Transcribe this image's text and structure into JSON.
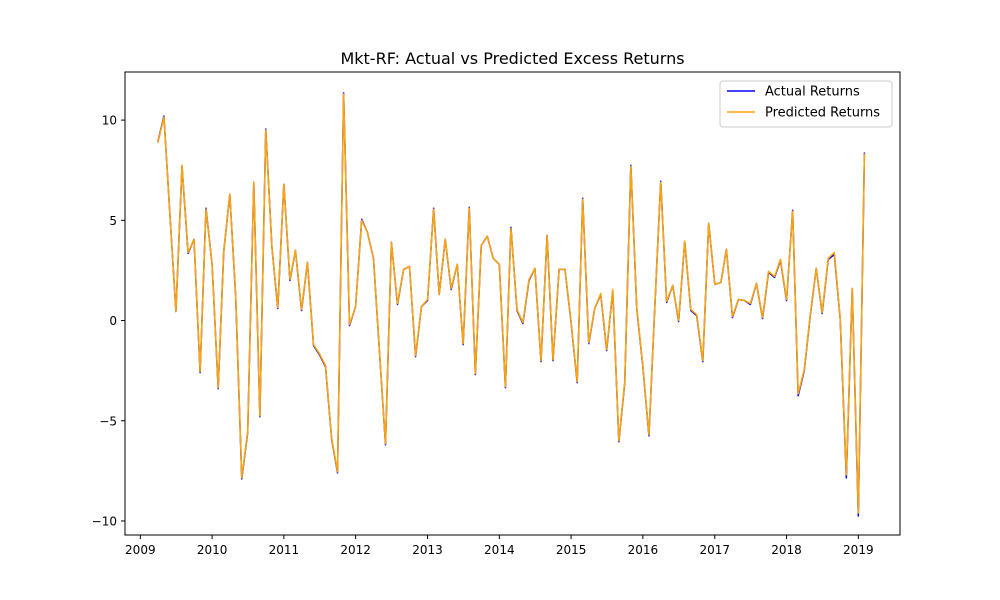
{
  "chart_data": {
    "type": "line",
    "title": "Mkt-RF: Actual vs Predicted Excess Returns",
    "xlabel": "",
    "ylabel": "",
    "x_axis": {
      "type": "date",
      "min": "2008-10-15",
      "max": "2019-08-01",
      "ticks": [
        {
          "label": "2009",
          "value": "2009-01-01"
        },
        {
          "label": "2010",
          "value": "2010-01-01"
        },
        {
          "label": "2011",
          "value": "2011-01-01"
        },
        {
          "label": "2012",
          "value": "2012-01-01"
        },
        {
          "label": "2013",
          "value": "2013-01-01"
        },
        {
          "label": "2014",
          "value": "2014-01-01"
        },
        {
          "label": "2015",
          "value": "2015-01-01"
        },
        {
          "label": "2016",
          "value": "2016-01-01"
        },
        {
          "label": "2017",
          "value": "2017-01-01"
        },
        {
          "label": "2018",
          "value": "2018-01-01"
        },
        {
          "label": "2019",
          "value": "2019-01-01"
        }
      ]
    },
    "y_axis": {
      "min": -10.7,
      "max": 12.4,
      "ticks": [
        {
          "label": "−10",
          "value": -10
        },
        {
          "label": "−5",
          "value": -5
        },
        {
          "label": "0",
          "value": 0
        },
        {
          "label": "5",
          "value": 5
        },
        {
          "label": "10",
          "value": 10
        }
      ]
    },
    "grid": false,
    "legend": {
      "position": "top-right",
      "entries": [
        {
          "label": "Actual Returns",
          "color": "#0000ff"
        },
        {
          "label": "Predicted Returns",
          "color": "#ffa500"
        }
      ]
    },
    "x": [
      "2009-04-01",
      "2009-05-01",
      "2009-06-01",
      "2009-07-01",
      "2009-08-01",
      "2009-09-01",
      "2009-10-01",
      "2009-11-01",
      "2009-12-01",
      "2010-01-01",
      "2010-02-01",
      "2010-03-01",
      "2010-04-01",
      "2010-05-01",
      "2010-06-01",
      "2010-07-01",
      "2010-08-01",
      "2010-09-01",
      "2010-10-01",
      "2010-11-01",
      "2010-12-01",
      "2011-01-01",
      "2011-02-01",
      "2011-03-01",
      "2011-04-01",
      "2011-05-01",
      "2011-06-01",
      "2011-07-01",
      "2011-08-01",
      "2011-09-01",
      "2011-10-01",
      "2011-11-01",
      "2011-12-01",
      "2012-01-01",
      "2012-02-01",
      "2012-03-01",
      "2012-04-01",
      "2012-05-01",
      "2012-06-01",
      "2012-07-01",
      "2012-08-01",
      "2012-09-01",
      "2012-10-01",
      "2012-11-01",
      "2012-12-01",
      "2013-01-01",
      "2013-02-01",
      "2013-03-01",
      "2013-04-01",
      "2013-05-01",
      "2013-06-01",
      "2013-07-01",
      "2013-08-01",
      "2013-09-01",
      "2013-10-01",
      "2013-11-01",
      "2013-12-01",
      "2014-01-01",
      "2014-02-01",
      "2014-03-01",
      "2014-04-01",
      "2014-05-01",
      "2014-06-01",
      "2014-07-01",
      "2014-08-01",
      "2014-09-01",
      "2014-10-01",
      "2014-11-01",
      "2014-12-01",
      "2015-01-01",
      "2015-02-01",
      "2015-03-01",
      "2015-04-01",
      "2015-05-01",
      "2015-06-01",
      "2015-07-01",
      "2015-08-01",
      "2015-09-01",
      "2015-10-01",
      "2015-11-01",
      "2015-12-01",
      "2016-01-01",
      "2016-02-01",
      "2016-03-01",
      "2016-04-01",
      "2016-05-01",
      "2016-06-01",
      "2016-07-01",
      "2016-08-01",
      "2016-09-01",
      "2016-10-01",
      "2016-11-01",
      "2016-12-01",
      "2017-01-01",
      "2017-02-01",
      "2017-03-01",
      "2017-04-01",
      "2017-05-01",
      "2017-06-01",
      "2017-07-01",
      "2017-08-01",
      "2017-09-01",
      "2017-10-01",
      "2017-11-01",
      "2017-12-01",
      "2018-01-01",
      "2018-02-01",
      "2018-03-01",
      "2018-04-01",
      "2018-05-01",
      "2018-06-01",
      "2018-07-01",
      "2018-08-01",
      "2018-09-01",
      "2018-10-01",
      "2018-11-01",
      "2018-12-01",
      "2019-01-01",
      "2019-02-01"
    ],
    "series": [
      {
        "name": "Actual Returns",
        "color": "#0000ff",
        "values": [
          8.95,
          10.2,
          5.2,
          0.45,
          7.7,
          3.35,
          4.05,
          -2.6,
          5.6,
          2.8,
          -3.4,
          3.4,
          6.3,
          1.2,
          -7.9,
          -5.6,
          6.9,
          -4.8,
          9.55,
          3.7,
          0.6,
          6.8,
          2.0,
          3.5,
          0.5,
          2.9,
          -1.25,
          -1.7,
          -2.3,
          -5.9,
          -7.6,
          11.35,
          -0.25,
          0.7,
          5.05,
          4.4,
          3.1,
          -1.5,
          -6.2,
          3.9,
          0.8,
          2.55,
          2.7,
          -1.8,
          0.7,
          1.0,
          5.6,
          1.3,
          4.05,
          1.55,
          2.8,
          -1.2,
          5.65,
          -2.7,
          3.75,
          4.2,
          3.1,
          2.8,
          -3.35,
          4.65,
          0.5,
          -0.15,
          2.0,
          2.6,
          -2.05,
          4.25,
          -2.0,
          2.55,
          2.55,
          -0.1,
          -3.1,
          6.1,
          -1.15,
          0.6,
          1.3,
          -1.5,
          1.5,
          -6.05,
          -3.1,
          7.75,
          0.6,
          -2.3,
          -5.75,
          0.5,
          6.95,
          0.9,
          1.75,
          -0.05,
          3.95,
          0.5,
          0.25,
          -2.05,
          4.85,
          1.8,
          1.9,
          3.55,
          0.15,
          1.05,
          1.0,
          0.8,
          1.85,
          0.1,
          2.4,
          2.15,
          3.0,
          1.0,
          5.5,
          -3.75,
          -2.5,
          0.2,
          2.6,
          0.35,
          3.05,
          3.3,
          0.05,
          -7.85,
          1.6,
          -9.75,
          8.35
        ]
      },
      {
        "name": "Predicted Returns",
        "color": "#ffa500",
        "values": [
          8.9,
          10.15,
          5.2,
          0.45,
          7.75,
          3.4,
          4.05,
          -2.55,
          5.55,
          2.8,
          -3.35,
          3.4,
          6.3,
          1.25,
          -7.85,
          -5.55,
          6.9,
          -4.75,
          9.5,
          3.7,
          0.65,
          6.8,
          2.05,
          3.5,
          0.55,
          2.9,
          -1.2,
          -1.65,
          -2.25,
          -5.85,
          -7.55,
          11.3,
          -0.2,
          0.7,
          5.0,
          4.4,
          3.1,
          -1.45,
          -6.15,
          3.9,
          0.85,
          2.55,
          2.7,
          -1.75,
          0.7,
          1.05,
          5.55,
          1.3,
          4.05,
          1.6,
          2.8,
          -1.15,
          5.6,
          -2.65,
          3.75,
          4.2,
          3.1,
          2.8,
          -3.3,
          4.6,
          0.55,
          -0.1,
          2.05,
          2.6,
          -2.0,
          4.25,
          -1.95,
          2.55,
          2.55,
          -0.05,
          -3.05,
          6.05,
          -1.1,
          0.6,
          1.35,
          -1.45,
          1.55,
          -6.0,
          -3.05,
          7.7,
          0.65,
          -2.25,
          -5.7,
          0.55,
          6.9,
          0.95,
          1.75,
          0.0,
          3.95,
          0.55,
          0.3,
          -2.0,
          4.85,
          1.8,
          1.9,
          3.55,
          0.2,
          1.05,
          1.0,
          0.85,
          1.85,
          0.15,
          2.45,
          2.2,
          3.05,
          1.05,
          5.45,
          -3.65,
          -2.45,
          0.25,
          2.6,
          0.4,
          3.1,
          3.4,
          0.1,
          -7.7,
          1.6,
          -9.6,
          8.3
        ]
      }
    ]
  }
}
